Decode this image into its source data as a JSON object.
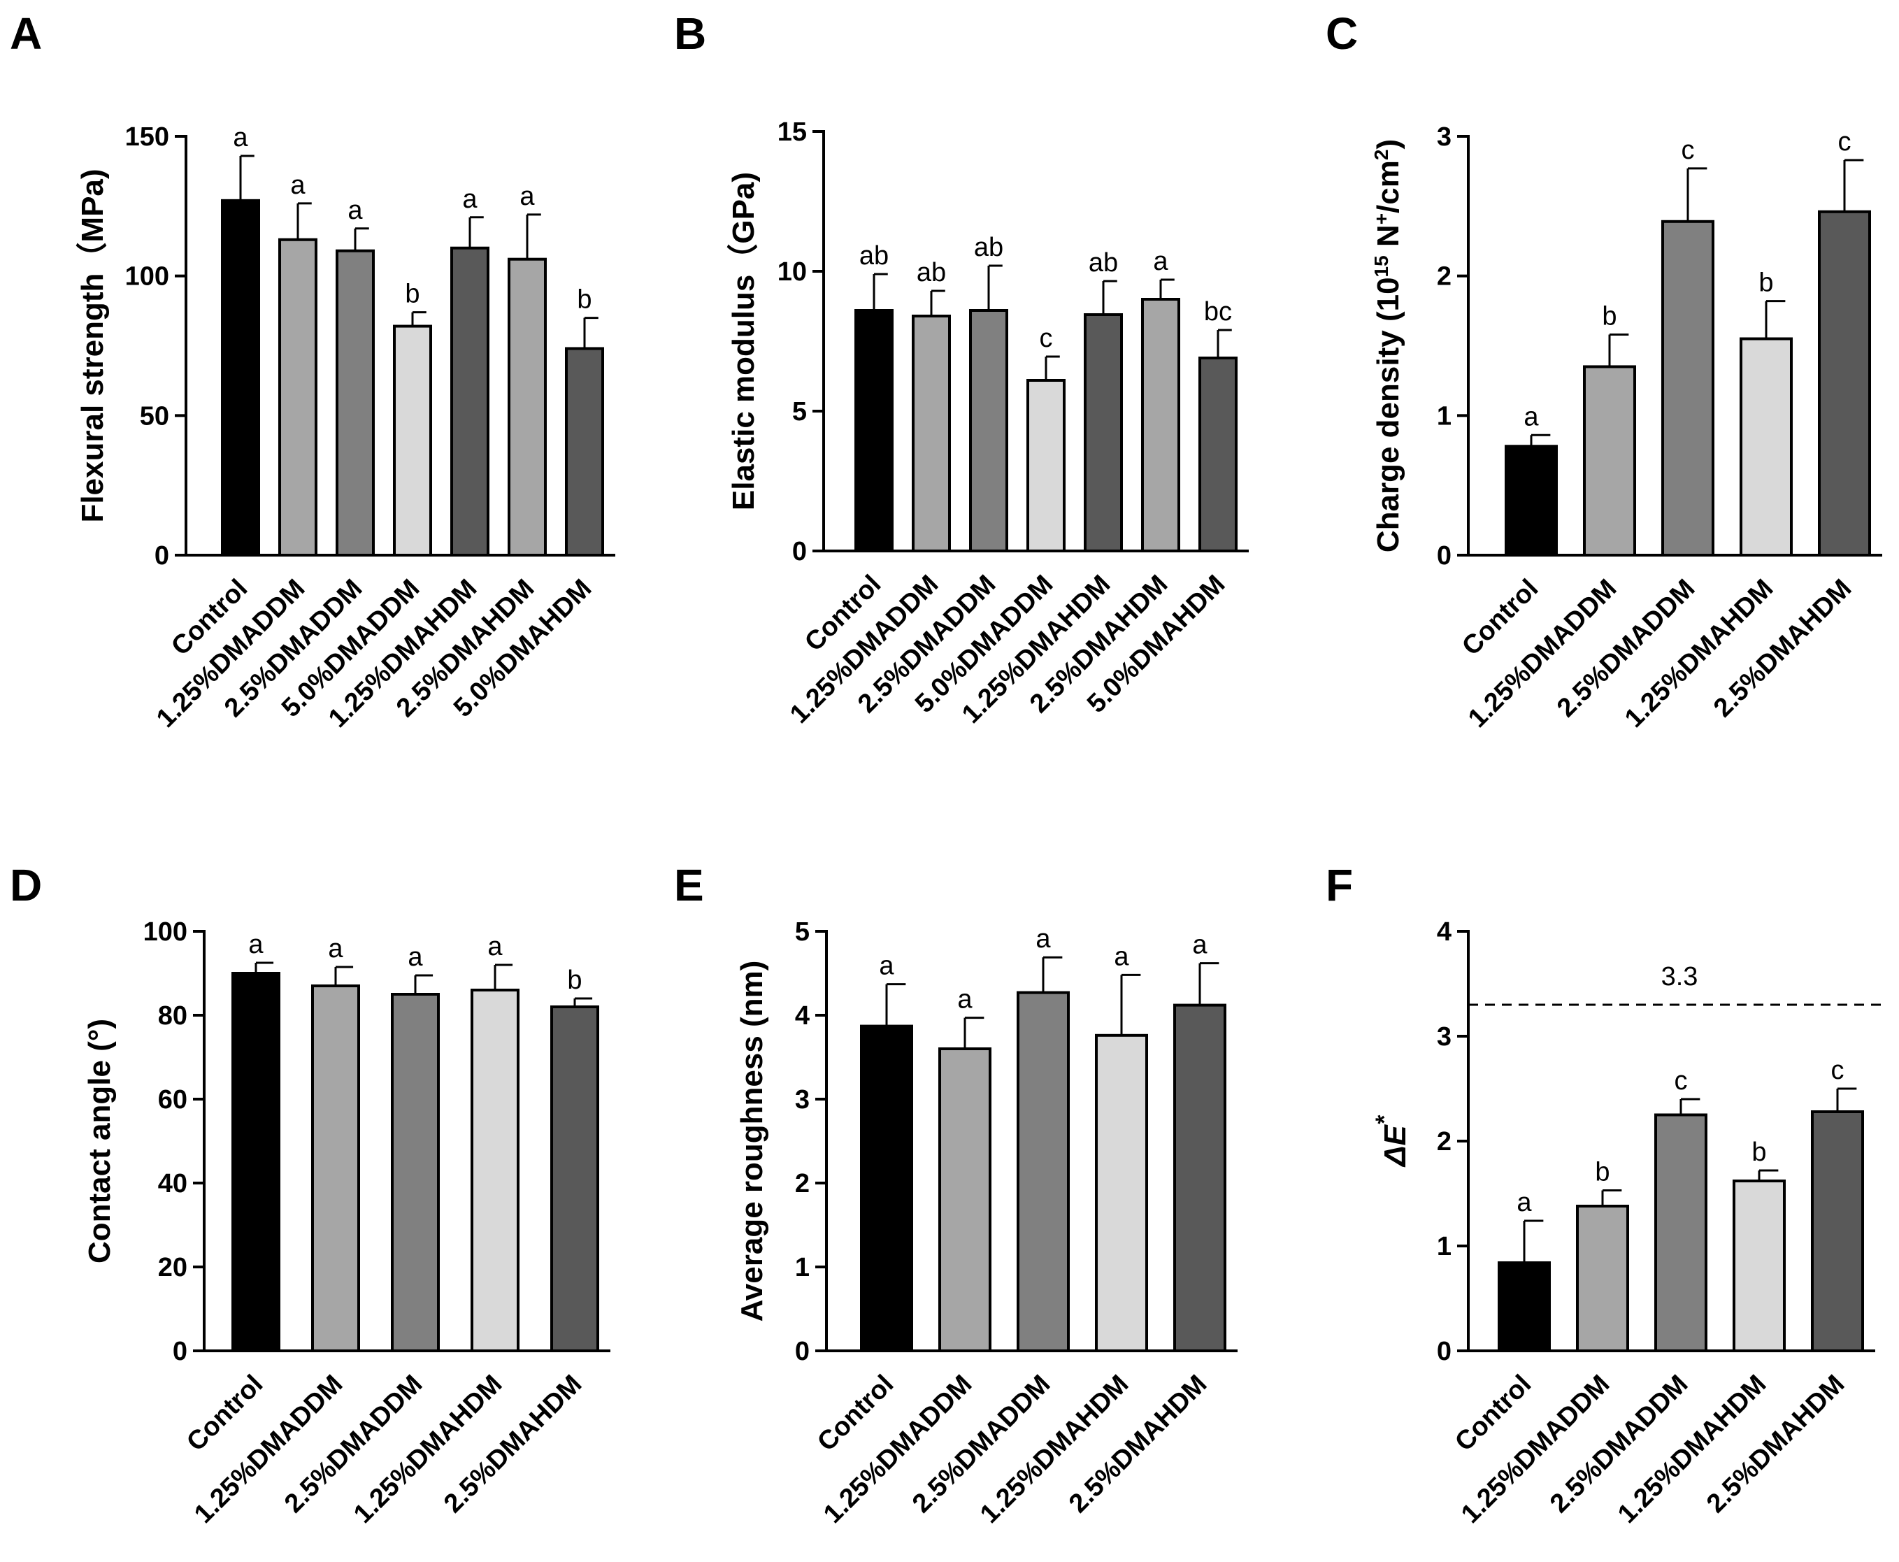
{
  "figure": {
    "panels": [
      "A",
      "B",
      "C",
      "D",
      "E",
      "F"
    ]
  },
  "chart_data": [
    {
      "id": "A",
      "type": "bar",
      "title": "",
      "ylabel": "Flexural strength（MPa)",
      "ylim": [
        0,
        150
      ],
      "yticks": [
        0,
        50,
        100,
        150
      ],
      "categories": [
        "Control",
        "1.25%DMADDM",
        "2.5%DMADDM",
        "5.0%DMADDM",
        "1.25%DMAHDM",
        "2.5%DMAHDM",
        "5.0%DMAHDM"
      ],
      "values": [
        127,
        113,
        109,
        82,
        110,
        106,
        74
      ],
      "errors": [
        16,
        13,
        8,
        5,
        11,
        16,
        11
      ],
      "labels": [
        "a",
        "a",
        "a",
        "b",
        "a",
        "a",
        "b"
      ],
      "colors": [
        "#000000",
        "#a6a6a6",
        "#808080",
        "#d9d9d9",
        "#595959",
        "#a6a6a6",
        "#595959"
      ]
    },
    {
      "id": "B",
      "type": "bar",
      "title": "",
      "ylabel": "Elastic modulus（GPa)",
      "ylim": [
        0,
        15
      ],
      "yticks": [
        0,
        5,
        10,
        15
      ],
      "categories": [
        "Control",
        "1.25%DMADDM",
        "2.5%DMADDM",
        "5.0%DMADDM",
        "1.25%DMAHDM",
        "2.5%DMAHDM",
        "5.0%DMAHDM"
      ],
      "values": [
        8.6,
        8.4,
        8.6,
        6.1,
        8.45,
        9.0,
        6.9
      ],
      "errors": [
        1.3,
        0.9,
        1.6,
        0.85,
        1.2,
        0.7,
        1.0
      ],
      "labels": [
        "ab",
        "ab",
        "ab",
        "c",
        "ab",
        "a",
        "bc"
      ],
      "colors": [
        "#000000",
        "#a6a6a6",
        "#808080",
        "#d9d9d9",
        "#595959",
        "#a6a6a6",
        "#595959"
      ]
    },
    {
      "id": "C",
      "type": "bar",
      "title": "",
      "ylabel_parts": [
        "Charge density (10",
        "15",
        " N",
        "+",
        "/cm",
        "2",
        ")"
      ],
      "ylim": [
        0,
        3
      ],
      "yticks": [
        0,
        1,
        2,
        3
      ],
      "categories": [
        "Control",
        "1.25%DMADDM",
        "2.5%DMADDM",
        "1.25%DMAHDM",
        "2.5%DMAHDM"
      ],
      "values": [
        0.78,
        1.35,
        2.39,
        1.55,
        2.46
      ],
      "errors": [
        0.08,
        0.23,
        0.38,
        0.27,
        0.37
      ],
      "labels": [
        "a",
        "b",
        "c",
        "b",
        "c"
      ],
      "colors": [
        "#000000",
        "#a6a6a6",
        "#808080",
        "#d9d9d9",
        "#595959"
      ]
    },
    {
      "id": "D",
      "type": "bar",
      "title": "",
      "ylabel": "Contact angle (°)",
      "ylim": [
        0,
        100
      ],
      "yticks": [
        0,
        20,
        40,
        60,
        80,
        100
      ],
      "categories": [
        "Control",
        "1.25%DMADDM",
        "2.5%DMADDM",
        "1.25%DMAHDM",
        "2.5%DMAHDM"
      ],
      "values": [
        90,
        87,
        85,
        86,
        82
      ],
      "errors": [
        2.5,
        4.5,
        4.5,
        6,
        2
      ],
      "labels": [
        "a",
        "a",
        "a",
        "a",
        "b"
      ],
      "colors": [
        "#000000",
        "#a6a6a6",
        "#808080",
        "#d9d9d9",
        "#595959"
      ]
    },
    {
      "id": "E",
      "type": "bar",
      "title": "",
      "ylabel": "Average roughness (nm)",
      "ylim": [
        0,
        5
      ],
      "yticks": [
        0,
        1,
        2,
        3,
        4,
        5
      ],
      "categories": [
        "Control",
        "1.25%DMADDM",
        "2.5%DMADDM",
        "1.25%DMAHDM",
        "2.5%DMAHDM"
      ],
      "values": [
        3.87,
        3.6,
        4.27,
        3.76,
        4.12
      ],
      "errors": [
        0.5,
        0.37,
        0.42,
        0.72,
        0.5
      ],
      "labels": [
        "a",
        "a",
        "a",
        "a",
        "a"
      ],
      "colors": [
        "#000000",
        "#a6a6a6",
        "#808080",
        "#d9d9d9",
        "#595959"
      ]
    },
    {
      "id": "F",
      "type": "bar",
      "title": "",
      "ylabel_parts": [
        "ΔE",
        "*"
      ],
      "ylim": [
        0,
        4
      ],
      "yticks": [
        0,
        1,
        2,
        3,
        4
      ],
      "categories": [
        "Control",
        "1.25%DMADDM",
        "2.5%DMADDM",
        "1.25%DMAHDM",
        "2.5%DMAHDM"
      ],
      "values": [
        0.84,
        1.38,
        2.25,
        1.62,
        2.28
      ],
      "errors": [
        0.4,
        0.15,
        0.15,
        0.1,
        0.22
      ],
      "labels": [
        "a",
        "b",
        "c",
        "b",
        "c"
      ],
      "colors": [
        "#000000",
        "#a6a6a6",
        "#808080",
        "#d9d9d9",
        "#595959"
      ],
      "reference_line": {
        "value": 3.3,
        "label": "3.3"
      }
    }
  ]
}
